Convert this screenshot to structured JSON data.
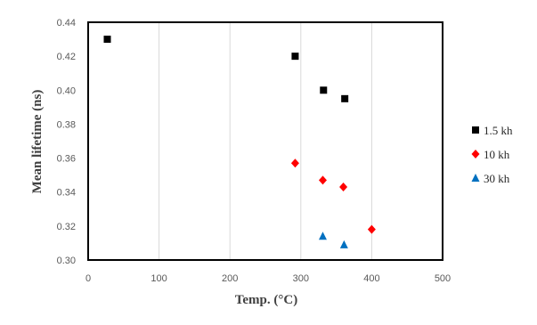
{
  "chart_data": {
    "type": "scatter",
    "xlabel": "Temp. (°C)",
    "ylabel": "Mean lifetime  (ns)",
    "xlim": [
      0,
      500
    ],
    "ylim": [
      0.3,
      0.44
    ],
    "xticks": [
      "0",
      "100",
      "200",
      "300",
      "400",
      "500"
    ],
    "yticks": [
      "0.30",
      "0.32",
      "0.34",
      "0.36",
      "0.38",
      "0.40",
      "0.42",
      "0.44"
    ],
    "grid": "vertical",
    "legend_position": "right",
    "series": [
      {
        "name": "1.5 kh",
        "marker": "square",
        "color": "#000000",
        "points": [
          [
            27,
            0.43
          ],
          [
            292,
            0.42
          ],
          [
            332,
            0.4
          ],
          [
            362,
            0.395
          ]
        ]
      },
      {
        "name": "10 kh",
        "marker": "diamond",
        "color": "#ff0000",
        "points": [
          [
            292,
            0.357
          ],
          [
            331,
            0.347
          ],
          [
            360,
            0.343
          ],
          [
            400,
            0.318
          ]
        ]
      },
      {
        "name": "30 kh",
        "marker": "triangle",
        "color": "#0070c0",
        "points": [
          [
            331,
            0.314
          ],
          [
            361,
            0.309
          ]
        ]
      }
    ]
  }
}
